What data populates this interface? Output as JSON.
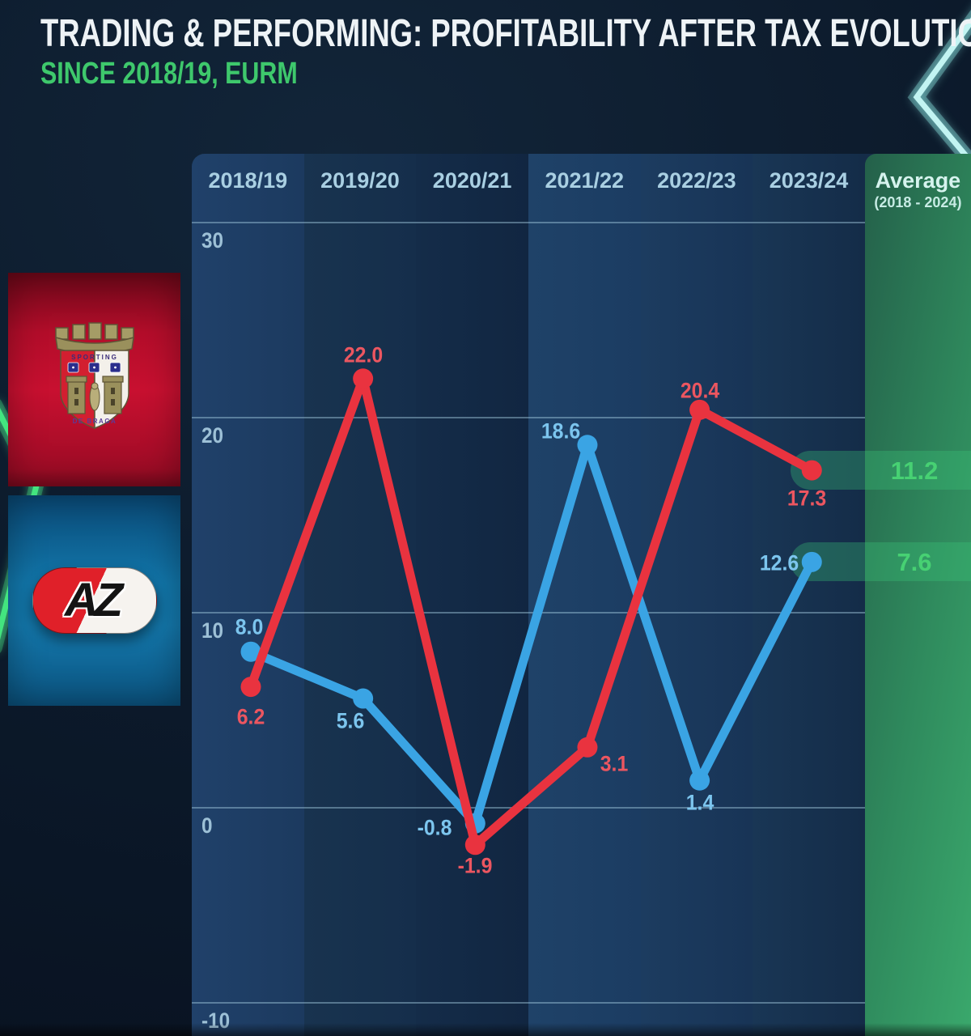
{
  "header": {
    "title": "TRADING & PERFORMING: PROFITABILITY AFTER TAX EVOLUTION",
    "subtitle": "SINCE 2018/19, EURM"
  },
  "colors": {
    "accent_green": "#3ec86c",
    "average_value_green": "#47d173",
    "neon_green": "#43e57f",
    "neon_cyan": "#c2f4f2",
    "braga_panel_red": "#c81030",
    "az_panel_blue": "#1277ab"
  },
  "logos": [
    {
      "id": "braga",
      "alt": "SC Braga crest",
      "texts": [
        "SPORTING",
        "DE BRAGA"
      ]
    },
    {
      "id": "az",
      "alt": "AZ Alkmaar logo",
      "text": "AZ"
    }
  ],
  "chart_data": {
    "type": "line",
    "title": "TRADING & PERFORMING: PROFITABILITY AFTER TAX EVOLUTION",
    "subtitle": "SINCE 2018/19, EURM",
    "categories": [
      "2018/19",
      "2019/20",
      "2020/21",
      "2021/22",
      "2022/23",
      "2023/24"
    ],
    "average_column": {
      "label": "Average",
      "sublabel": "(2018 - 2024)"
    },
    "series": [
      {
        "name": "SC Braga",
        "color": "#e9333f",
        "values": [
          6.2,
          22.0,
          -1.9,
          3.1,
          20.4,
          17.3
        ],
        "average": 11.2
      },
      {
        "name": "AZ Alkmaar",
        "color": "#3aa4e4",
        "values": [
          8.0,
          5.6,
          -0.8,
          18.6,
          1.4,
          12.6
        ],
        "average": 7.6
      }
    ],
    "label_offsets": [
      [
        [
          0,
          37
        ],
        [
          0,
          -29
        ],
        [
          0,
          26
        ],
        [
          33,
          21
        ],
        [
          0,
          -23
        ],
        [
          -6,
          35
        ]
      ],
      [
        [
          -2,
          -30
        ],
        [
          -16,
          28
        ],
        [
          -50,
          6
        ],
        [
          -33,
          -17
        ],
        [
          0,
          28
        ],
        [
          -40,
          2
        ]
      ]
    ],
    "yticks": [
      30,
      20,
      10,
      0,
      -10
    ],
    "ylim": [
      -12,
      33
    ],
    "xlabel": "",
    "ylabel": "EURM",
    "grid": true,
    "legend_position": "left-logos"
  }
}
